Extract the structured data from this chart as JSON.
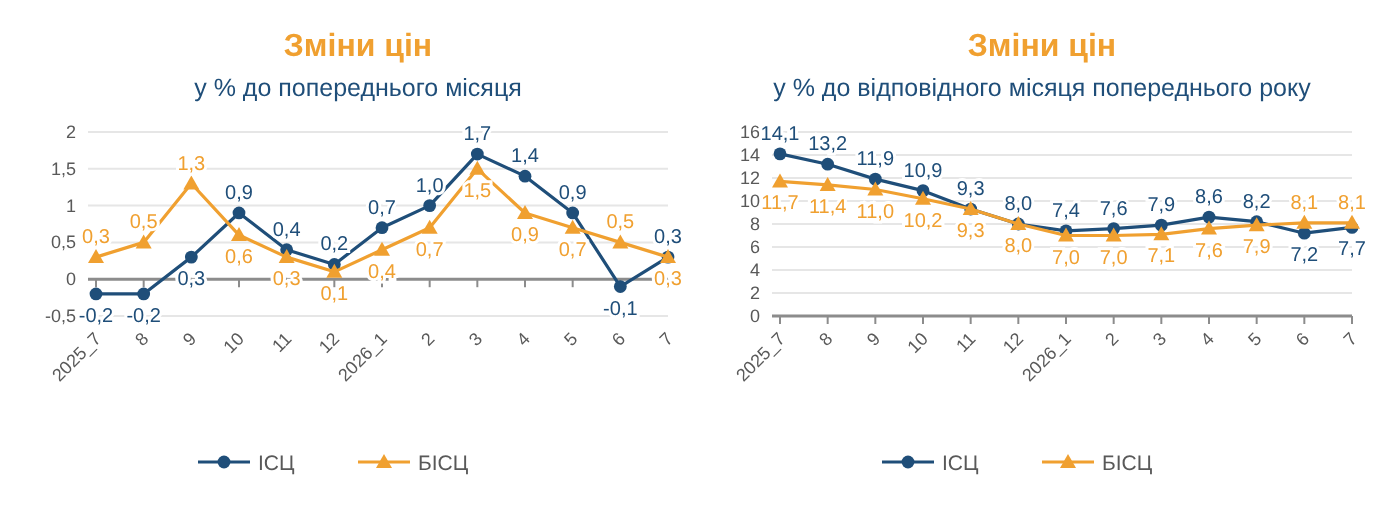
{
  "chart_data": [
    {
      "type": "line",
      "title": "Зміни цін",
      "subtitle": "у % до попереднього місяця",
      "categories": [
        "2025_7",
        "8",
        "9",
        "10",
        "11",
        "12",
        "2026_1",
        "2",
        "3",
        "4",
        "5",
        "6",
        "7"
      ],
      "ylim": [
        -0.5,
        2
      ],
      "yticks": [
        {
          "value": -0.5,
          "label": "-0,5"
        },
        0,
        {
          "value": 0.5,
          "label": "0,5"
        },
        1,
        {
          "value": 1.5,
          "label": "1,5"
        },
        2
      ],
      "grid": "y",
      "legend": "bottom",
      "line_style": "solid",
      "series": [
        {
          "name": "ІСЦ",
          "color": "#1f4e79",
          "marker": "circle",
          "values": [
            -0.2,
            -0.2,
            0.3,
            0.9,
            0.4,
            0.2,
            0.7,
            1.0,
            1.7,
            1.4,
            0.9,
            -0.1,
            0.3
          ],
          "value_labels": [
            "-0,2",
            "-0,2",
            "0,3",
            "0,9",
            "0,4",
            "0,2",
            "0,7",
            "1,0",
            "1,7",
            "1,4",
            "0,9",
            "-0,1",
            "0,3"
          ]
        },
        {
          "name": "БІСЦ",
          "color": "#f0a030",
          "marker": "triangle",
          "values": [
            0.3,
            0.5,
            1.3,
            0.6,
            0.3,
            0.1,
            0.4,
            0.7,
            1.5,
            0.9,
            0.7,
            0.5,
            0.3
          ],
          "value_labels": [
            "0,3",
            "0,5",
            "1,3",
            "0,6",
            "0,3",
            "0,1",
            "0,4",
            "0,7",
            "1,5",
            "0,9",
            "0,7",
            "0,5",
            "0,3"
          ]
        }
      ]
    },
    {
      "type": "line",
      "title": "Зміни цін",
      "subtitle": "у % до відповідного місяця попереднього року",
      "categories": [
        "2025_7",
        "8",
        "9",
        "10",
        "11",
        "12",
        "2026_1",
        "2",
        "3",
        "4",
        "5",
        "6",
        "7"
      ],
      "ylim": [
        0,
        16
      ],
      "yticks": [
        0,
        2,
        4,
        6,
        8,
        10,
        12,
        14,
        16
      ],
      "grid": "y",
      "legend": "bottom",
      "line_style": "solid",
      "series": [
        {
          "name": "ІСЦ",
          "color": "#1f4e79",
          "marker": "circle",
          "values": [
            14.1,
            13.2,
            11.9,
            10.9,
            9.3,
            8.0,
            7.4,
            7.6,
            7.9,
            8.6,
            8.2,
            7.2,
            7.7
          ],
          "value_labels": [
            "14,1",
            "13,2",
            "11,9",
            "10,9",
            "9,3",
            "8,0",
            "7,4",
            "7,6",
            "7,9",
            "8,6",
            "8,2",
            "7,2",
            "7,7"
          ]
        },
        {
          "name": "БІСЦ",
          "color": "#f0a030",
          "marker": "triangle",
          "values": [
            11.7,
            11.4,
            11.0,
            10.2,
            9.3,
            8.0,
            7.0,
            7.0,
            7.1,
            7.6,
            7.9,
            8.1,
            8.1
          ],
          "value_labels": [
            "11,7",
            "11,4",
            "11,0",
            "10,2",
            "9,3",
            "8,0",
            "7,0",
            "7,0",
            "7,1",
            "7,6",
            "7,9",
            "8,1",
            "8,1"
          ]
        }
      ]
    }
  ]
}
